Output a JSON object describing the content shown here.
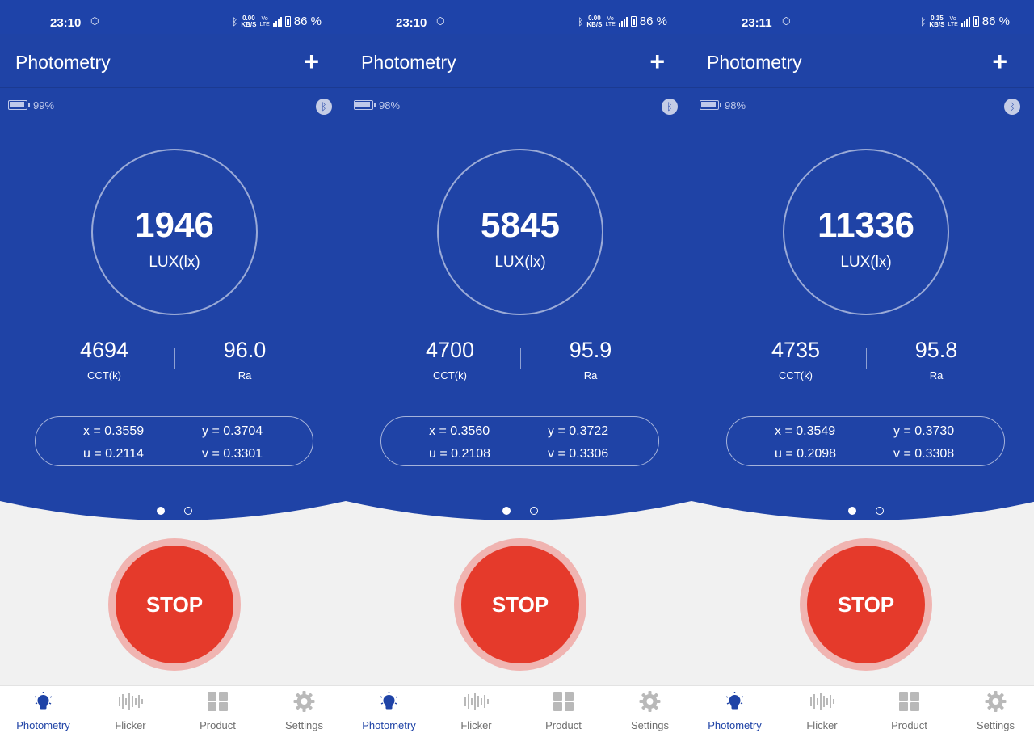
{
  "screens": [
    {
      "status": {
        "time": "23:10",
        "speed_top": "0.00",
        "speed_bottom": "KB/S",
        "battery_pct": "86 %"
      },
      "app_title": "Photometry",
      "device_battery": "99%",
      "lux": "1946",
      "lux_unit": "LUX(lx)",
      "cct": "4694",
      "cct_label": "CCT(k)",
      "ra": "96.0",
      "ra_label": "Ra",
      "x": "x = 0.3559",
      "y": "y = 0.3704",
      "u": "u = 0.2114",
      "v": "v = 0.3301",
      "stop": "STOP"
    },
    {
      "status": {
        "time": "23:10",
        "speed_top": "0.00",
        "speed_bottom": "KB/S",
        "battery_pct": "86 %"
      },
      "app_title": "Photometry",
      "device_battery": "98%",
      "lux": "5845",
      "lux_unit": "LUX(lx)",
      "cct": "4700",
      "cct_label": "CCT(k)",
      "ra": "95.9",
      "ra_label": "Ra",
      "x": "x = 0.3560",
      "y": "y = 0.3722",
      "u": "u = 0.2108",
      "v": "v = 0.3306",
      "stop": "STOP"
    },
    {
      "status": {
        "time": "23:11",
        "speed_top": "0.15",
        "speed_bottom": "KB/S",
        "battery_pct": "86 %"
      },
      "app_title": "Photometry",
      "device_battery": "98%",
      "lux": "11336",
      "lux_unit": "LUX(lx)",
      "cct": "4735",
      "cct_label": "CCT(k)",
      "ra": "95.8",
      "ra_label": "Ra",
      "x": "x = 0.3549",
      "y": "y = 0.3730",
      "u": "u = 0.2098",
      "v": "v = 0.3308",
      "stop": "STOP"
    }
  ],
  "nav": [
    "Photometry",
    "Flicker",
    "Product",
    "Settings"
  ],
  "colors": {
    "primary": "#1f43a6",
    "stop": "#e53a2b",
    "stop_halo": "#f0b4b1",
    "background": "#f1f1f1"
  },
  "icons": {
    "add": "plus-icon",
    "bluetooth": "bluetooth-icon",
    "battery": "battery-icon",
    "photometry": "lightbulb-icon",
    "flicker": "waveform-icon",
    "product": "grid-icon",
    "settings": "gear-icon"
  }
}
